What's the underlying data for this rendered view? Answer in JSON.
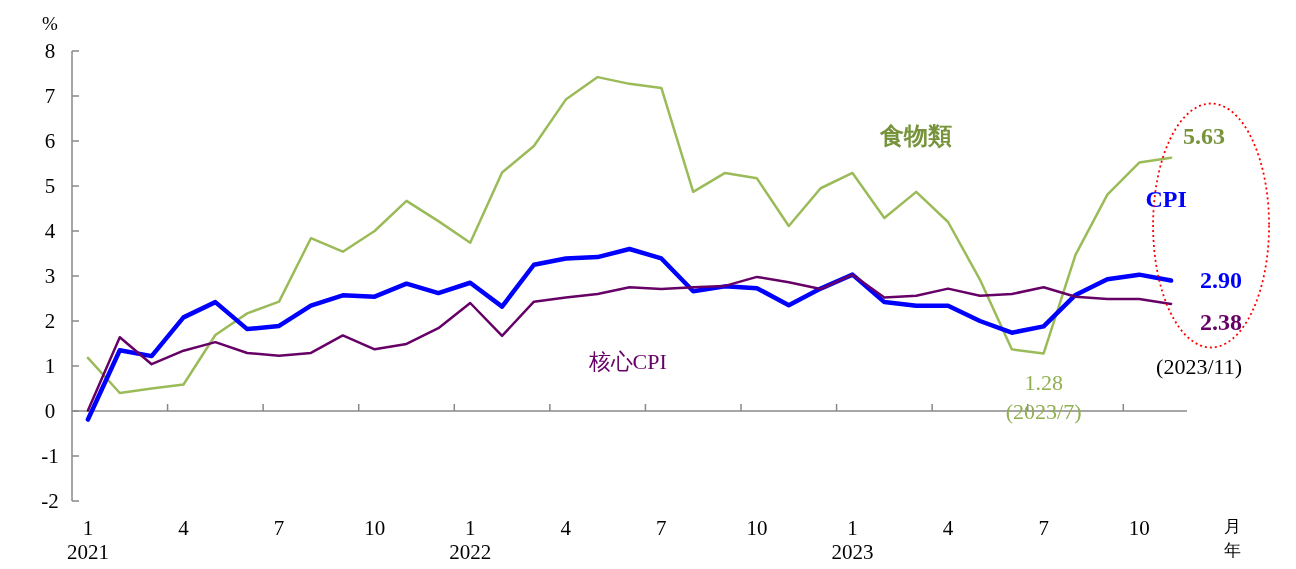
{
  "chart_data": {
    "type": "line",
    "ylabel": "%",
    "xlabel": "月年",
    "categories": [
      "1\n2021",
      null,
      null,
      "4",
      null,
      null,
      "7",
      null,
      null,
      "10",
      null,
      null,
      "1\n2022",
      null,
      null,
      "4",
      null,
      null,
      "7",
      null,
      null,
      "10",
      null,
      null,
      "1\n2023",
      null,
      null,
      "4",
      null,
      null,
      "7",
      null,
      null,
      "10",
      null
    ],
    "ylim": [
      -2,
      8
    ],
    "yticks": [
      -2,
      -1,
      0,
      1,
      2,
      3,
      4,
      5,
      6,
      7,
      8
    ],
    "series": [
      {
        "name": "食物類",
        "color": "#9bbb59",
        "values": [
          1.18,
          0.4,
          0.5,
          0.59,
          1.69,
          2.17,
          2.43,
          3.84,
          3.54,
          4.0,
          4.67,
          4.22,
          3.74,
          5.3,
          5.89,
          6.92,
          7.42,
          7.27,
          7.18,
          4.87,
          5.29,
          5.17,
          4.11,
          4.95,
          5.29,
          4.29,
          4.87,
          4.2,
          2.92,
          1.37,
          1.28,
          3.47,
          4.81,
          5.52,
          5.63
        ],
        "value_labels": [
          null,
          null,
          null,
          null,
          null,
          null,
          null,
          null,
          null,
          null,
          null,
          null,
          null,
          null,
          null,
          null,
          null,
          null,
          null,
          null,
          null,
          null,
          null,
          null,
          null,
          null,
          null,
          null,
          null,
          null,
          "1.28",
          null,
          null,
          null,
          "5.63"
        ]
      },
      {
        "name": "CPI",
        "color": "#0000ff",
        "values": [
          -0.19,
          1.35,
          1.22,
          2.08,
          2.42,
          1.82,
          1.89,
          2.34,
          2.57,
          2.54,
          2.83,
          2.62,
          2.85,
          2.32,
          3.25,
          3.39,
          3.42,
          3.6,
          3.39,
          2.66,
          2.77,
          2.73,
          2.35,
          2.72,
          3.03,
          2.42,
          2.34,
          2.34,
          2.0,
          1.74,
          1.88,
          2.58,
          2.93,
          3.03,
          2.9
        ],
        "value_labels": [
          null,
          null,
          null,
          null,
          null,
          null,
          null,
          null,
          null,
          null,
          null,
          null,
          null,
          null,
          null,
          null,
          null,
          null,
          null,
          null,
          null,
          null,
          null,
          null,
          null,
          null,
          null,
          null,
          null,
          null,
          null,
          null,
          null,
          null,
          "2.90"
        ]
      },
      {
        "name": "核心CPI",
        "color": "#660066",
        "values": [
          0.01,
          1.64,
          1.04,
          1.34,
          1.53,
          1.29,
          1.23,
          1.29,
          1.68,
          1.37,
          1.49,
          1.84,
          2.4,
          1.67,
          2.43,
          2.52,
          2.6,
          2.75,
          2.71,
          2.75,
          2.78,
          2.98,
          2.86,
          2.71,
          3.03,
          2.52,
          2.56,
          2.72,
          2.56,
          2.6,
          2.75,
          2.54,
          2.49,
          2.49,
          2.38
        ],
        "value_labels": [
          null,
          null,
          null,
          null,
          null,
          null,
          null,
          null,
          null,
          null,
          null,
          null,
          null,
          null,
          null,
          null,
          null,
          null,
          null,
          null,
          null,
          null,
          null,
          null,
          null,
          null,
          null,
          null,
          null,
          null,
          null,
          null,
          null,
          null,
          "2.38"
        ]
      }
    ],
    "annotations": [
      "(2023/7)",
      "(2023/11)"
    ]
  }
}
